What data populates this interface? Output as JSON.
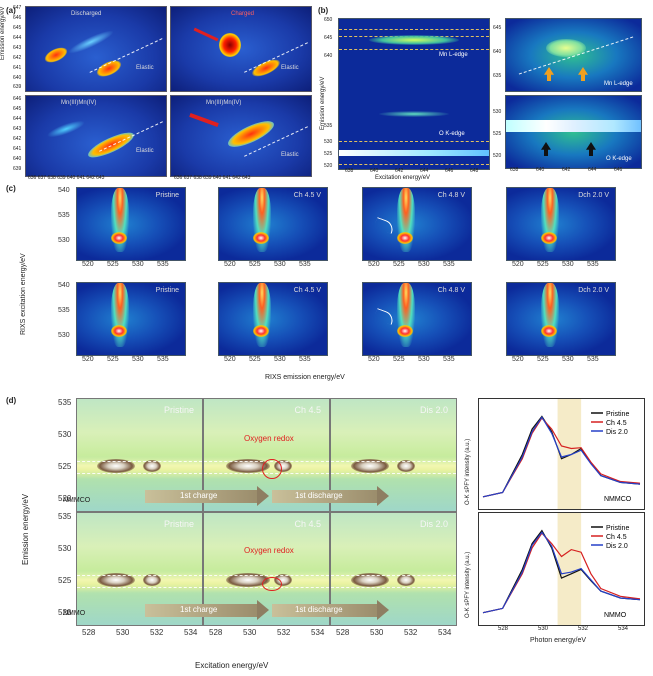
{
  "panel_a": {
    "label": "(a)",
    "tl_title": "Discharged",
    "tr_title": "Charged",
    "bl_title": "Mn(III)Mn(IV)",
    "br_title": "Mn(III)Mn(IV)",
    "ylabel": "Emission energy/eV",
    "elastic": "Elastic",
    "yticks_top": [
      "647",
      "646",
      "645",
      "644",
      "643",
      "642",
      "641",
      "640",
      "639"
    ],
    "yticks_bottom": [
      "646",
      "645",
      "644",
      "643",
      "642",
      "641",
      "640",
      "639"
    ],
    "xticks": [
      "636 637 638 639 640 641 642 643"
    ]
  },
  "panel_b": {
    "label": "(b)",
    "ylabel": "Emission energy/eV",
    "xlabel": "Excitation energy/eV",
    "mn_edge": "Mn L-edge",
    "o_edge": "O K-edge",
    "yticks": [
      "650",
      "645",
      "640",
      "535",
      "530",
      "525",
      "520"
    ],
    "xticks": [
      "638",
      "640",
      "642",
      "644",
      "646",
      "648"
    ],
    "inset_top_label": "Mn L-edge",
    "inset_bottom_label": "O K-edge",
    "inset_xticks": [
      "638",
      "640",
      "642",
      "644",
      "646"
    ],
    "inset_top_yticks": [
      "645",
      "640",
      "635"
    ],
    "inset_bottom_yticks": [
      "530",
      "525",
      "520"
    ]
  },
  "panel_c": {
    "label": "(c)",
    "ylabel": "RIXS excitation energy/eV",
    "xlabel": "RIXS emission energy/eV",
    "top_row": [
      "Pristine",
      "Ch 4.5 V",
      "Ch 4.8 V",
      "Dch 2.0 V"
    ],
    "bottom_row": [
      "Pristine",
      "Ch 4.5 V",
      "Ch 4.8 V",
      "Dch 2.0 V"
    ],
    "yticks": [
      "540",
      "535",
      "530"
    ],
    "xticks": [
      "520",
      "525",
      "530",
      "535"
    ]
  },
  "panel_d": {
    "label": "(d)",
    "ylabel": "Emission energy/eV",
    "xlabel": "Excitation energy/eV",
    "top_titles": [
      "Pristine",
      "Ch 4.5",
      "Dis 2.0"
    ],
    "bottom_titles": [
      "Pristine",
      "Ch 4.5",
      "Dis 2.0"
    ],
    "oxygen_redox": "Oxygen redox",
    "sample_top": "NMMCO",
    "sample_bottom": "NMMO",
    "charge": "1st charge",
    "discharge": "1st discharge",
    "yticks": [
      "535",
      "530",
      "525",
      "520"
    ],
    "xticks": [
      "528",
      "530",
      "532",
      "534"
    ],
    "line_ylabel": "O-K sPFY intensity (a.u.)",
    "line_xlabel": "Photon energy/eV",
    "line_xticks": [
      "528",
      "530",
      "532",
      "534"
    ],
    "legend": [
      "Pristine",
      "Ch 4.5",
      "Dis 2.0"
    ],
    "colors": {
      "pristine": "#111111",
      "ch": "#d62020",
      "dis": "#2540c8"
    }
  },
  "chart_data": [
    {
      "type": "line",
      "title": "NMMCO",
      "xlabel": "Photon energy/eV",
      "ylabel": "O-K sPFY intensity (a.u.)",
      "x": [
        527,
        528,
        529,
        529.5,
        530,
        530.5,
        531,
        531.5,
        532,
        532.5,
        533,
        534,
        535
      ],
      "series": [
        {
          "name": "Pristine",
          "values": [
            0.05,
            0.1,
            0.55,
            0.85,
            1.0,
            0.82,
            0.5,
            0.55,
            0.62,
            0.45,
            0.3,
            0.22,
            0.2
          ]
        },
        {
          "name": "Ch 4.5",
          "values": [
            0.05,
            0.1,
            0.5,
            0.8,
            0.98,
            0.85,
            0.65,
            0.62,
            0.63,
            0.46,
            0.32,
            0.23,
            0.21
          ]
        },
        {
          "name": "Dis 2.0",
          "values": [
            0.05,
            0.1,
            0.52,
            0.82,
            0.99,
            0.8,
            0.52,
            0.55,
            0.6,
            0.44,
            0.3,
            0.22,
            0.2
          ]
        }
      ],
      "xlim": [
        527,
        535
      ]
    },
    {
      "type": "line",
      "title": "NMMO",
      "xlabel": "Photon energy/eV",
      "ylabel": "O-K sPFY intensity (a.u.)",
      "x": [
        527,
        528,
        529,
        529.5,
        530,
        530.5,
        531,
        531.5,
        532,
        532.5,
        533,
        534,
        535
      ],
      "series": [
        {
          "name": "Pristine",
          "values": [
            0.05,
            0.1,
            0.55,
            0.85,
            1.0,
            0.8,
            0.45,
            0.5,
            0.55,
            0.42,
            0.3,
            0.22,
            0.2
          ]
        },
        {
          "name": "Ch 4.5",
          "values": [
            0.05,
            0.1,
            0.5,
            0.8,
            0.97,
            0.85,
            0.7,
            0.78,
            0.75,
            0.5,
            0.33,
            0.24,
            0.21
          ]
        },
        {
          "name": "Dis 2.0",
          "values": [
            0.05,
            0.1,
            0.52,
            0.83,
            0.98,
            0.82,
            0.5,
            0.52,
            0.56,
            0.43,
            0.3,
            0.22,
            0.2
          ]
        }
      ],
      "xlim": [
        527,
        535
      ]
    }
  ]
}
